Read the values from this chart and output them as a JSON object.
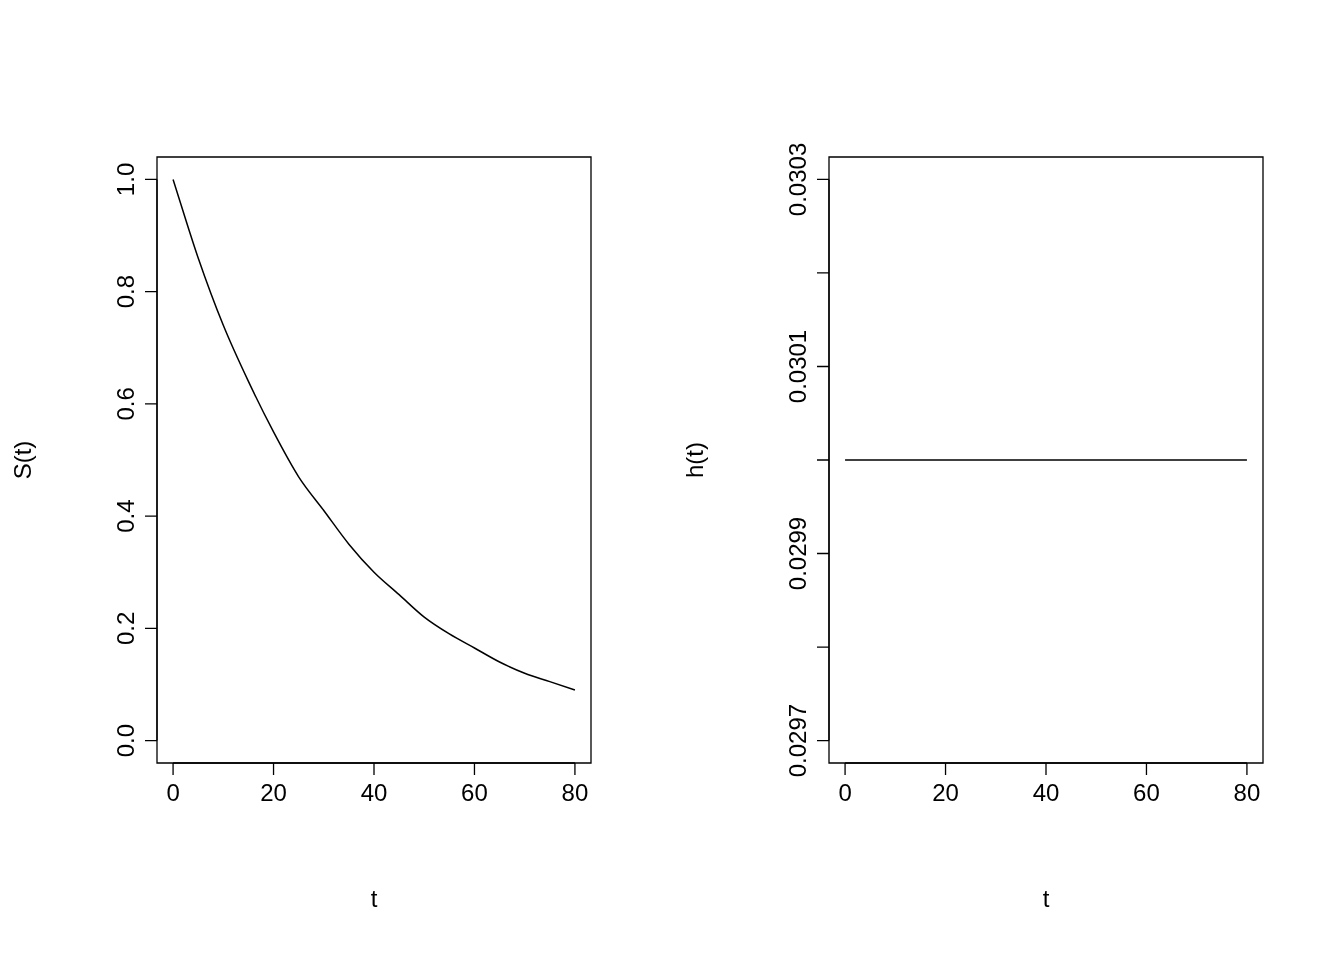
{
  "chart_data": [
    {
      "type": "line",
      "xlabel": "t",
      "ylabel": "S(t)",
      "x": [
        0,
        5,
        10,
        15,
        20,
        25,
        30,
        35,
        40,
        45,
        50,
        55,
        60,
        65,
        70,
        75,
        80
      ],
      "series": [
        {
          "color": "#000000",
          "values": [
            1.0,
            0.86,
            0.74,
            0.64,
            0.55,
            0.47,
            0.41,
            0.35,
            0.3,
            0.26,
            0.22,
            0.19,
            0.165,
            0.14,
            0.12,
            0.105,
            0.09
          ]
        }
      ],
      "xlim": [
        -3.2,
        83.2
      ],
      "xticks": [
        0,
        20,
        40,
        60,
        80
      ],
      "ylim": [
        -0.04,
        1.04
      ],
      "yticks": [
        {
          "value": 0,
          "label": "0.0"
        },
        {
          "value": 0.2,
          "label": "0.2"
        },
        {
          "value": 0.4,
          "label": "0.4"
        },
        {
          "value": 0.6,
          "label": "0.6"
        },
        {
          "value": 0.8,
          "label": "0.8"
        },
        {
          "value": 1,
          "label": "1.0"
        }
      ],
      "legend": false,
      "marker": "none",
      "line_style": "solid"
    },
    {
      "type": "line",
      "xlabel": "t",
      "ylabel": "h(t)",
      "x": [
        0,
        80
      ],
      "series": [
        {
          "color": "#000000",
          "values": [
            0.03,
            0.03
          ]
        }
      ],
      "xlim": [
        -3.2,
        83.2
      ],
      "xticks": [
        0,
        20,
        40,
        60,
        80
      ],
      "ylim": [
        0.029676,
        0.030324
      ],
      "yticks": [
        0.0297,
        {
          "value": 0.0298,
          "label": null
        },
        0.0299,
        {
          "value": 0.03,
          "label": null
        },
        0.0301,
        {
          "value": 0.0302,
          "label": null
        },
        0.0303
      ],
      "legend": false,
      "marker": "none",
      "line_style": "solid"
    }
  ]
}
